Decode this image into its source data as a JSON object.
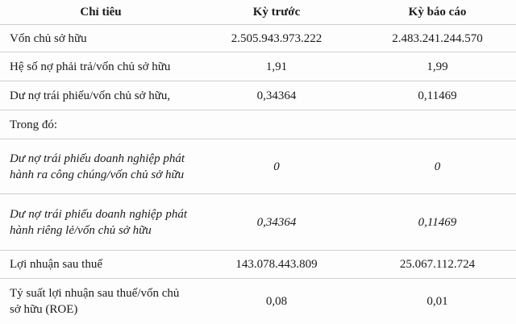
{
  "header": {
    "col1": "Chỉ tiêu",
    "col2": "Kỳ trước",
    "col3": "Kỳ báo cáo"
  },
  "rows": [
    {
      "label": "Vốn chủ sở hữu",
      "prev": "2.505.943.973.222",
      "curr": "2.483.241.244.570"
    },
    {
      "label": "Hệ số nợ phải trả/vốn chủ sở hữu",
      "prev": "1,91",
      "curr": "1,99"
    },
    {
      "label": "Dư nợ trái phiếu/vốn chủ sở hữu,",
      "prev": "0,34364",
      "curr": "0,11469"
    },
    {
      "label": "Trong đó:",
      "prev": "",
      "curr": ""
    },
    {
      "label": "Dư nợ trái phiếu doanh nghiệp phát hành ra công chúng/vốn chủ sở hữu",
      "prev": "0",
      "curr": "0"
    },
    {
      "label": "Dư nợ trái phiếu doanh nghiệp phát hành riêng lẻ/vốn chủ sở hữu",
      "prev": "0,34364",
      "curr": "0,11469"
    },
    {
      "label": "Lợi nhuận sau thuế",
      "prev": "143.078.443.809",
      "curr": "25.067.112.724"
    },
    {
      "label": "Tỷ suất lợi nhuận sau thuế/vốn chủ sở hữu (ROE)",
      "prev": "0,08",
      "curr": "0,01"
    }
  ]
}
